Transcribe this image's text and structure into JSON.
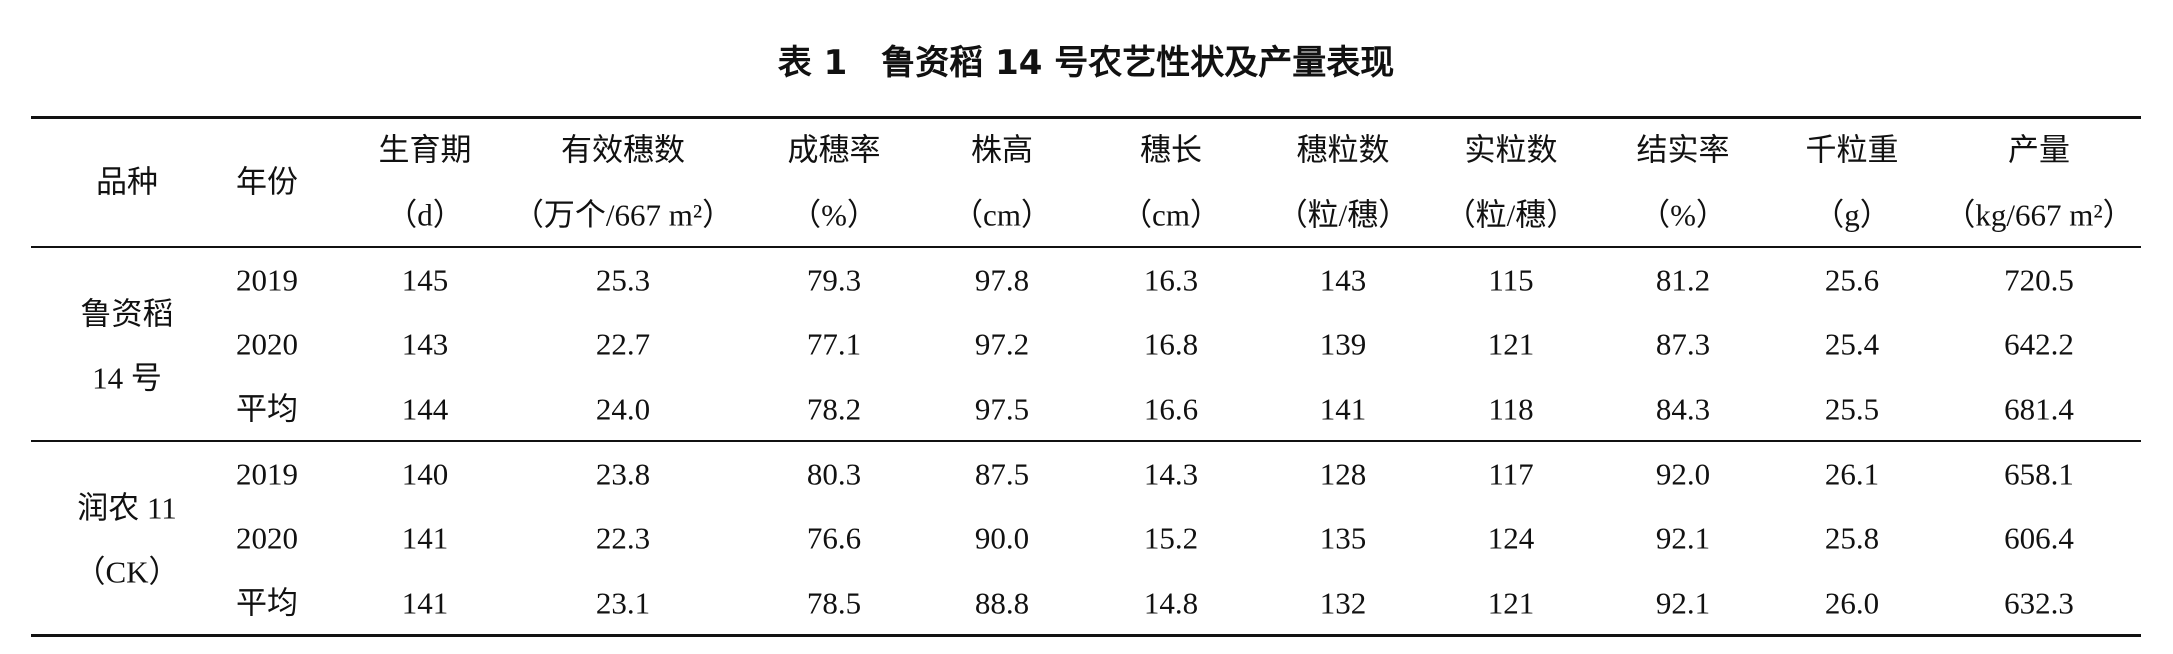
{
  "title": "表 1　鲁资稻 14 号农艺性状及产量表现",
  "table": {
    "columns": [
      {
        "name": "品种"
      },
      {
        "name": "年份"
      },
      {
        "name": "生育期",
        "unit": "（d）"
      },
      {
        "name": "有效穗数",
        "unit": "（万个/667 m²）"
      },
      {
        "name": "成穗率",
        "unit": "（%）"
      },
      {
        "name": "株高",
        "unit": "（cm）"
      },
      {
        "name": "穗长",
        "unit": "（cm）"
      },
      {
        "name": "穗粒数",
        "unit": "（粒/穗）"
      },
      {
        "name": "实粒数",
        "unit": "（粒/穗）"
      },
      {
        "name": "结实率",
        "unit": "（%）"
      },
      {
        "name": "千粒重",
        "unit": "（g）"
      },
      {
        "name": "产量",
        "unit": "（kg/667 m²）"
      }
    ],
    "groups": [
      {
        "variety": [
          "鲁资稻",
          "14 号"
        ],
        "rows": [
          [
            "2019",
            "145",
            "25.3",
            "79.3",
            "97.8",
            "16.3",
            "143",
            "115",
            "81.2",
            "25.6",
            "720.5"
          ],
          [
            "2020",
            "143",
            "22.7",
            "77.1",
            "97.2",
            "16.8",
            "139",
            "121",
            "87.3",
            "25.4",
            "642.2"
          ],
          [
            "平均",
            "144",
            "24.0",
            "78.2",
            "97.5",
            "16.6",
            "141",
            "118",
            "84.3",
            "25.5",
            "681.4"
          ]
        ]
      },
      {
        "variety": [
          "润农 11",
          "（CK）"
        ],
        "rows": [
          [
            "2019",
            "140",
            "23.8",
            "80.3",
            "87.5",
            "14.3",
            "128",
            "117",
            "92.0",
            "26.1",
            "658.1"
          ],
          [
            "2020",
            "141",
            "22.3",
            "76.6",
            "90.0",
            "15.2",
            "135",
            "124",
            "92.1",
            "25.8",
            "606.4"
          ],
          [
            "平均",
            "141",
            "23.1",
            "78.5",
            "88.8",
            "14.8",
            "132",
            "121",
            "92.1",
            "26.0",
            "632.3"
          ]
        ]
      }
    ]
  }
}
